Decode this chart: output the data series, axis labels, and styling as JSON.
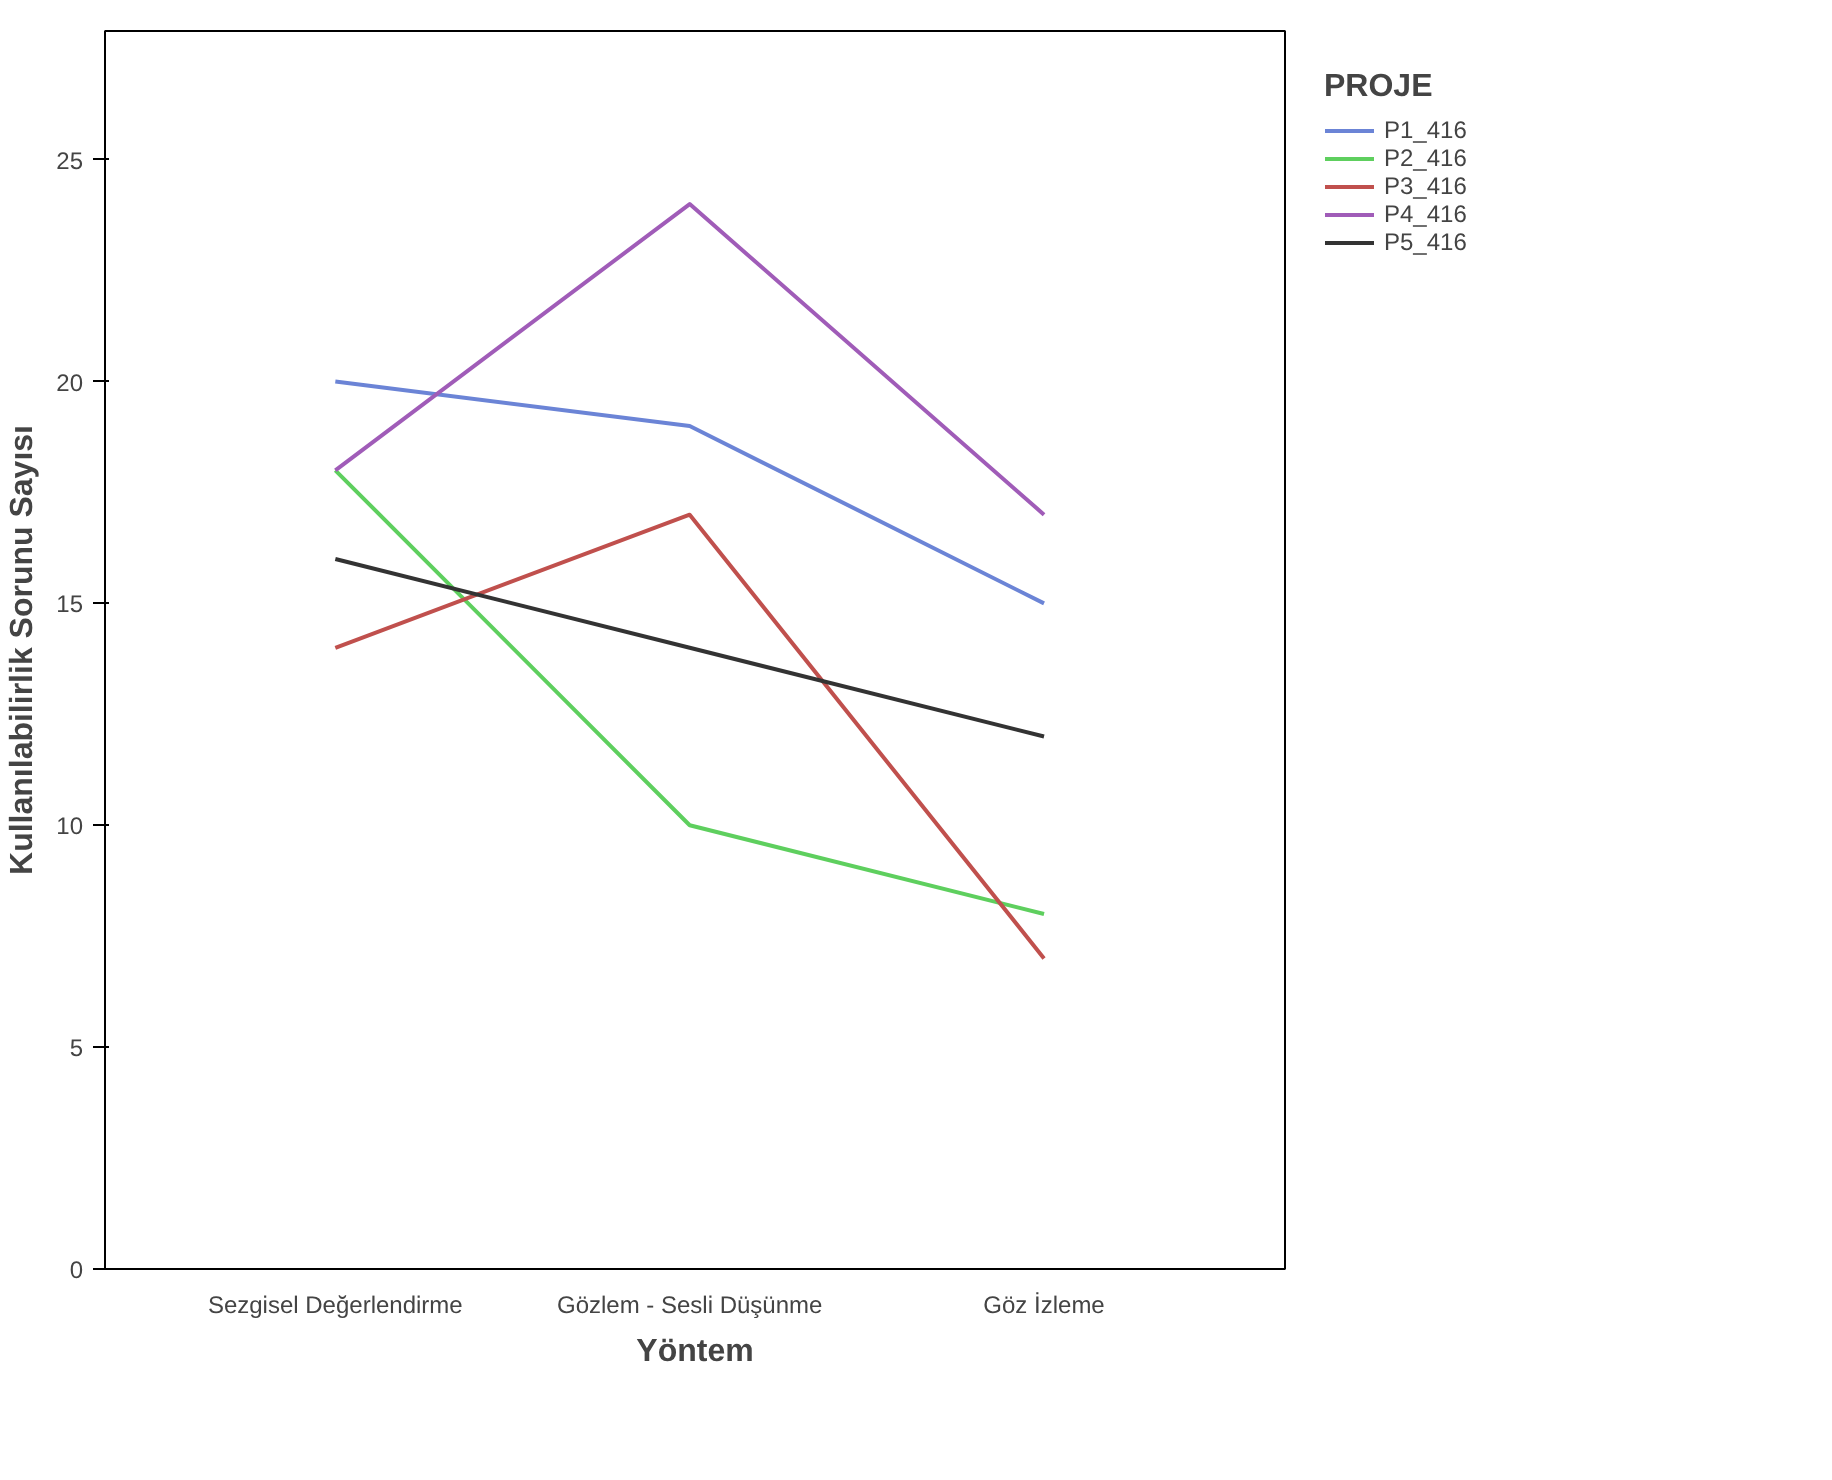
{
  "chart_data": {
    "type": "line",
    "xlabel": "Yöntem",
    "ylabel": "Kullanılabilirlik Sorunu Sayısı",
    "legend_title": "PROJE",
    "categories": [
      "Sezgisel Değerlendirme",
      "Gözlem - Sesli Düşünme",
      "Göz İzleme"
    ],
    "ylim": [
      0,
      27.9
    ],
    "yticks": [
      0,
      5,
      10,
      15,
      20,
      25
    ],
    "grid": false,
    "legend": "top right",
    "marker": "none",
    "line_style": "solid",
    "series": [
      {
        "name": "P1_416",
        "color": "#6b84d6",
        "values": [
          20,
          19,
          15
        ]
      },
      {
        "name": "P2_416",
        "color": "#5ecf5e",
        "values": [
          18,
          10,
          8
        ]
      },
      {
        "name": "P3_416",
        "color": "#c0504d",
        "values": [
          14,
          17,
          7
        ]
      },
      {
        "name": "P4_416",
        "color": "#a05cb8",
        "values": [
          18,
          24,
          17
        ]
      },
      {
        "name": "P5_416",
        "color": "#333333",
        "values": [
          16,
          14,
          12
        ]
      }
    ]
  }
}
